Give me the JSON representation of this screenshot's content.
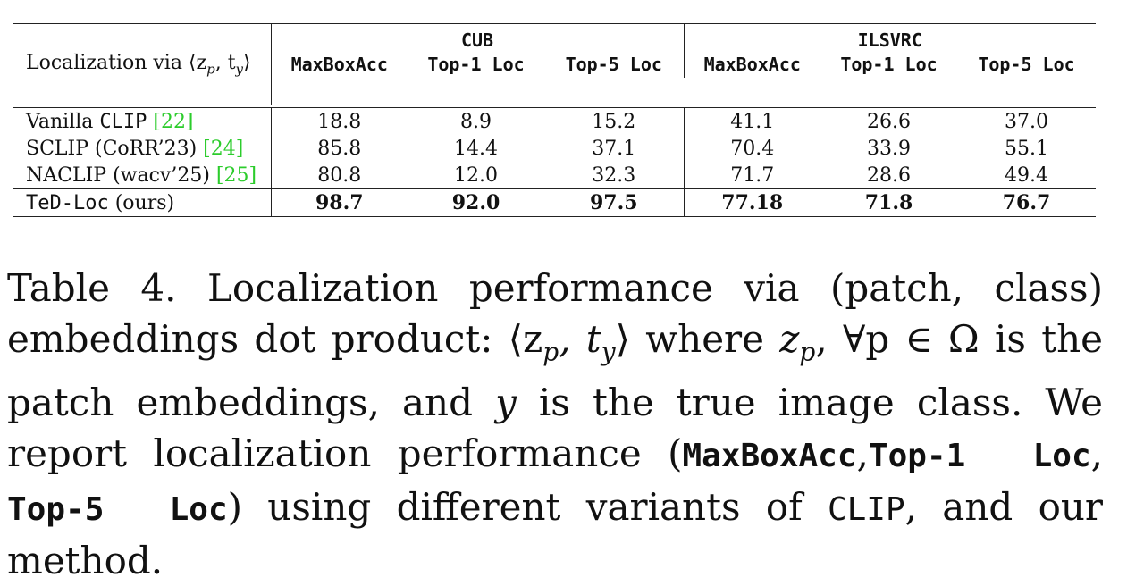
{
  "table": {
    "row_header": "Localization via ⟨z",
    "row_header_sub_p": "p",
    "row_header_mid": ", t",
    "row_header_sub_y": "y",
    "row_header_end": "⟩",
    "groups": [
      "CUB",
      "ILSVRC"
    ],
    "columns": [
      "MaxBoxAcc",
      "Top-1 Loc",
      "Top-5 Loc",
      "MaxBoxAcc",
      "Top-1 Loc",
      "Top-5 Loc"
    ],
    "rows": [
      {
        "name_pre": "Vanilla ",
        "name_mono": "CLIP",
        "name_post": " ",
        "cite": "[22]",
        "values": [
          "18.8",
          "8.9",
          "15.2",
          "41.1",
          "26.6",
          "37.0"
        ]
      },
      {
        "name_pre": "SCLIP (CoRR’23) ",
        "name_mono": "",
        "name_post": "",
        "cite": "[24]",
        "values": [
          "85.8",
          "14.4",
          "37.1",
          "70.4",
          "33.9",
          "55.1"
        ]
      },
      {
        "name_pre": "NACLIP (wacv’25) ",
        "name_mono": "",
        "name_post": "",
        "cite": "[25]",
        "values": [
          "80.8",
          "12.0",
          "32.3",
          "71.7",
          "28.6",
          "49.4"
        ]
      }
    ],
    "ours": {
      "name_mono": "TeD-Loc",
      "name_post": " (ours)",
      "values": [
        "98.7",
        "92.0",
        "97.5",
        "77.18",
        "71.8",
        "76.7"
      ]
    }
  },
  "caption": {
    "part1": "Table 4.  Localization performance via (patch, class) embeddings dot product: ",
    "math1": "⟨z",
    "sub_p": "p",
    "math1b": ", t",
    "sub_y": "y",
    "math1c": "⟩",
    "part2": " where ",
    "math2": "z",
    "sub_p2": "p",
    "math2b": ", ∀p ∈ Ω",
    "part3": " is the patch embeddings, and ",
    "math3": "y",
    "part4": " is the true image class.  We report localization performance (",
    "m1": "MaxBoxAcc",
    "comma1": ",",
    "m2": "Top-1  Loc",
    "comma2": ", ",
    "m3": "Top-5  Loc",
    "part5": ") using different variants of ",
    "m4": "CLIP",
    "part6": ", and our method."
  }
}
